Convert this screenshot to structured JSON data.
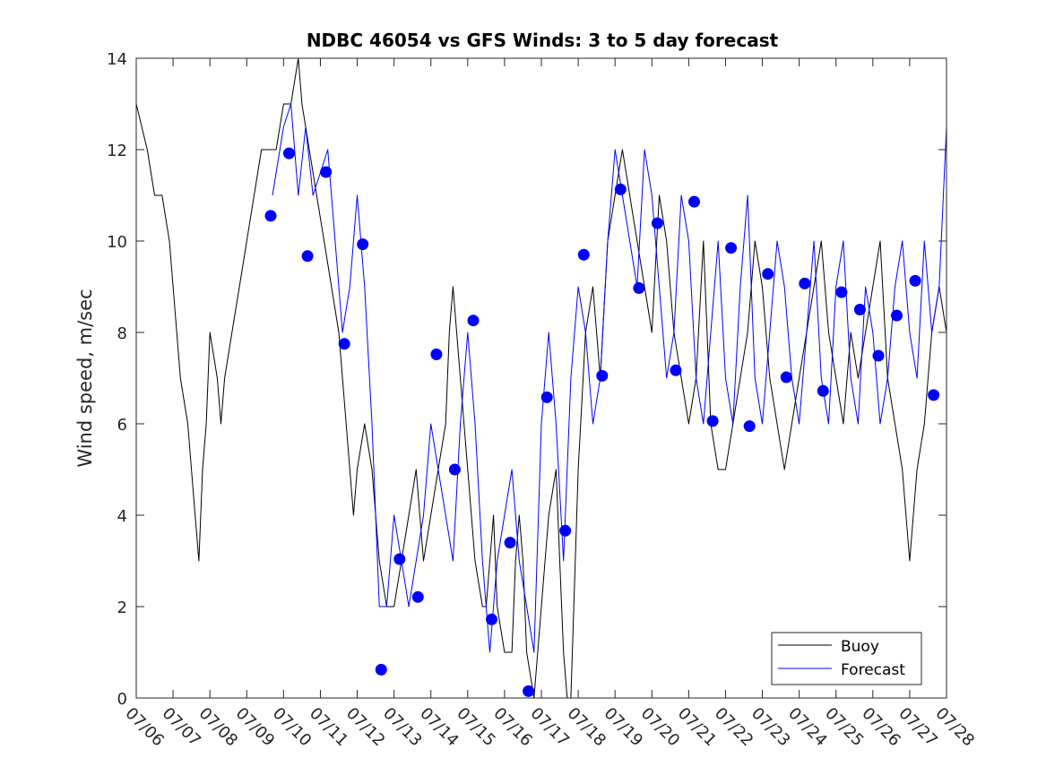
{
  "chart_data": {
    "type": "line",
    "title": "NDBC 46054 vs GFS Winds: 3 to 5 day forecast",
    "xlabel": "",
    "ylabel": "Wind speed, m/sec",
    "ylim": [
      0,
      14
    ],
    "yticks": [
      0,
      2,
      4,
      6,
      8,
      10,
      12,
      14
    ],
    "xlim_days": [
      6,
      28
    ],
    "xtick_labels": [
      "07/06",
      "07/07",
      "07/08",
      "07/09",
      "07/10",
      "07/11",
      "07/12",
      "07/13",
      "07/14",
      "07/15",
      "07/16",
      "07/17",
      "07/18",
      "07/19",
      "07/20",
      "07/21",
      "07/22",
      "07/23",
      "07/24",
      "07/25",
      "07/26",
      "07/27",
      "07/28"
    ],
    "grid": false,
    "legend": {
      "placement": "bottom-right",
      "entries": [
        {
          "label": "Buoy",
          "color": "#000000"
        },
        {
          "label": "Forecast",
          "color": "#0000ff"
        }
      ]
    },
    "colors": {
      "buoy": "#000000",
      "forecast": "#0000ff",
      "markers": "#0000ff"
    },
    "series": [
      {
        "name": "Buoy",
        "x": [
          6.0,
          6.3,
          6.5,
          6.7,
          6.9,
          7.0,
          7.1,
          7.2,
          7.4,
          7.5,
          7.6,
          7.7,
          7.8,
          7.9,
          8.0,
          8.2,
          8.3,
          8.4,
          8.6,
          8.8,
          9.0,
          9.2,
          9.4,
          9.6,
          9.8,
          10.0,
          10.2,
          10.4,
          10.5,
          10.7,
          10.9,
          11.1,
          11.3,
          11.5,
          11.6,
          11.7,
          11.8,
          11.9,
          12.0,
          12.2,
          12.4,
          12.5,
          12.6,
          12.8,
          13.0,
          13.2,
          13.4,
          13.6,
          13.8,
          14.0,
          14.2,
          14.4,
          14.5,
          14.6,
          14.8,
          15.0,
          15.2,
          15.4,
          15.5,
          15.6,
          15.7,
          15.8,
          16.0,
          16.2,
          16.3,
          16.4,
          16.5,
          16.6,
          16.8,
          16.9,
          17.0,
          17.2,
          17.4,
          17.5,
          17.6,
          17.7,
          17.8,
          18.0,
          18.2,
          18.4,
          18.6,
          18.8,
          19.0,
          19.2,
          19.4,
          19.6,
          19.8,
          20.0,
          20.2,
          20.4,
          20.6,
          20.8,
          21.0,
          21.2,
          21.4,
          21.6,
          21.8,
          22.0,
          22.2,
          22.4,
          22.6,
          22.8,
          23.0,
          23.2,
          23.4,
          23.6,
          23.8,
          24.0,
          24.2,
          24.4,
          24.6,
          24.8,
          25.0,
          25.2,
          25.4,
          25.6,
          25.8,
          26.0,
          26.2,
          26.4,
          26.6,
          26.8,
          27.0,
          27.2,
          27.4,
          27.6,
          27.8,
          28.0
        ],
        "y": [
          13,
          12,
          11,
          11,
          10,
          9,
          8,
          7,
          6,
          5,
          4,
          3,
          5,
          6,
          8,
          7,
          6,
          7,
          8,
          9,
          10,
          11,
          12,
          12,
          12,
          13,
          13,
          14,
          13,
          12,
          11,
          10,
          9,
          8,
          7,
          6,
          5,
          4,
          5,
          6,
          5,
          4,
          3,
          2,
          2,
          3,
          4,
          5,
          3,
          4,
          5,
          6,
          8,
          9,
          7,
          5,
          3,
          2,
          2,
          3,
          4,
          2,
          1,
          1,
          3,
          4,
          3,
          1,
          0,
          1,
          2,
          4,
          5,
          3,
          1,
          0,
          0,
          5,
          8,
          9,
          7,
          10,
          11,
          12,
          11,
          10,
          9,
          8,
          11,
          10,
          8,
          7,
          6,
          7,
          10,
          6,
          5,
          5,
          6,
          7,
          8,
          10,
          9,
          7,
          6,
          5,
          6,
          7,
          8,
          9,
          10,
          8,
          7,
          6,
          8,
          7,
          8,
          9,
          10,
          7,
          6,
          5,
          3,
          5,
          6,
          8,
          9,
          8
        ],
        "color": "#000000"
      },
      {
        "name": "Forecast",
        "x": [
          9.7,
          10.0,
          10.2,
          10.4,
          10.6,
          10.8,
          11.0,
          11.2,
          11.4,
          11.6,
          11.8,
          12.0,
          12.2,
          12.4,
          12.6,
          12.8,
          13.0,
          13.2,
          13.4,
          13.6,
          13.8,
          14.0,
          14.2,
          14.4,
          14.6,
          14.8,
          15.0,
          15.2,
          15.4,
          15.6,
          15.8,
          16.0,
          16.2,
          16.4,
          16.6,
          16.8,
          17.0,
          17.2,
          17.4,
          17.6,
          17.8,
          18.0,
          18.2,
          18.4,
          18.6,
          18.8,
          19.0,
          19.2,
          19.4,
          19.6,
          19.8,
          20.0,
          20.2,
          20.4,
          20.6,
          20.8,
          21.0,
          21.2,
          21.4,
          21.6,
          21.8,
          22.0,
          22.2,
          22.4,
          22.6,
          22.8,
          23.0,
          23.2,
          23.4,
          23.6,
          23.8,
          24.0,
          24.2,
          24.4,
          24.6,
          24.8,
          25.0,
          25.2,
          25.4,
          25.6,
          25.8,
          26.0,
          26.2,
          26.4,
          26.6,
          26.8,
          27.0,
          27.2,
          27.4,
          27.6,
          27.8,
          28.0
        ],
        "y": [
          11,
          12.5,
          13,
          11,
          12.5,
          11,
          11.5,
          12,
          10,
          8,
          9,
          11,
          9,
          6,
          2,
          2,
          4,
          3,
          2,
          3,
          4,
          6,
          5,
          4,
          3,
          6,
          8,
          6,
          3,
          1,
          3,
          4,
          5,
          3,
          2,
          1,
          6,
          8,
          6,
          3,
          7,
          9,
          8,
          6,
          7,
          10,
          12,
          11,
          10,
          9,
          12,
          11,
          9,
          7,
          8,
          11,
          10,
          7,
          6,
          8,
          10,
          7,
          6,
          9,
          11,
          7,
          6,
          8,
          10,
          9,
          7,
          6,
          8,
          10,
          7,
          6,
          9,
          10,
          7,
          6,
          9,
          8,
          6,
          7,
          9,
          10,
          8,
          7,
          10,
          8,
          9,
          12.5
        ],
        "color": "#0000ff"
      },
      {
        "name": "",
        "marker": "filled-circle",
        "color": "#0000ff",
        "x": [
          9.65,
          10.15,
          10.65,
          11.15,
          11.65,
          12.15,
          12.65,
          13.15,
          13.65,
          14.15,
          14.65,
          15.15,
          15.65,
          16.15,
          16.65,
          17.15,
          17.65,
          18.15,
          18.65,
          19.15,
          19.65,
          20.15,
          20.65,
          21.15,
          21.65,
          22.15,
          22.65,
          23.15,
          23.65,
          24.15,
          24.65,
          25.15,
          25.65,
          26.15,
          26.65,
          27.15,
          27.65
        ],
        "y": [
          10.55,
          11.92,
          9.67,
          11.51,
          7.75,
          9.93,
          0.62,
          3.04,
          2.21,
          7.52,
          5.0,
          8.26,
          1.72,
          3.4,
          0.15,
          6.58,
          3.66,
          9.7,
          7.05,
          11.13,
          8.97,
          10.39,
          7.17,
          10.86,
          6.06,
          9.85,
          5.95,
          9.28,
          7.02,
          9.07,
          6.72,
          8.88,
          8.5,
          7.49,
          8.37,
          9.13,
          6.63
        ]
      }
    ]
  }
}
